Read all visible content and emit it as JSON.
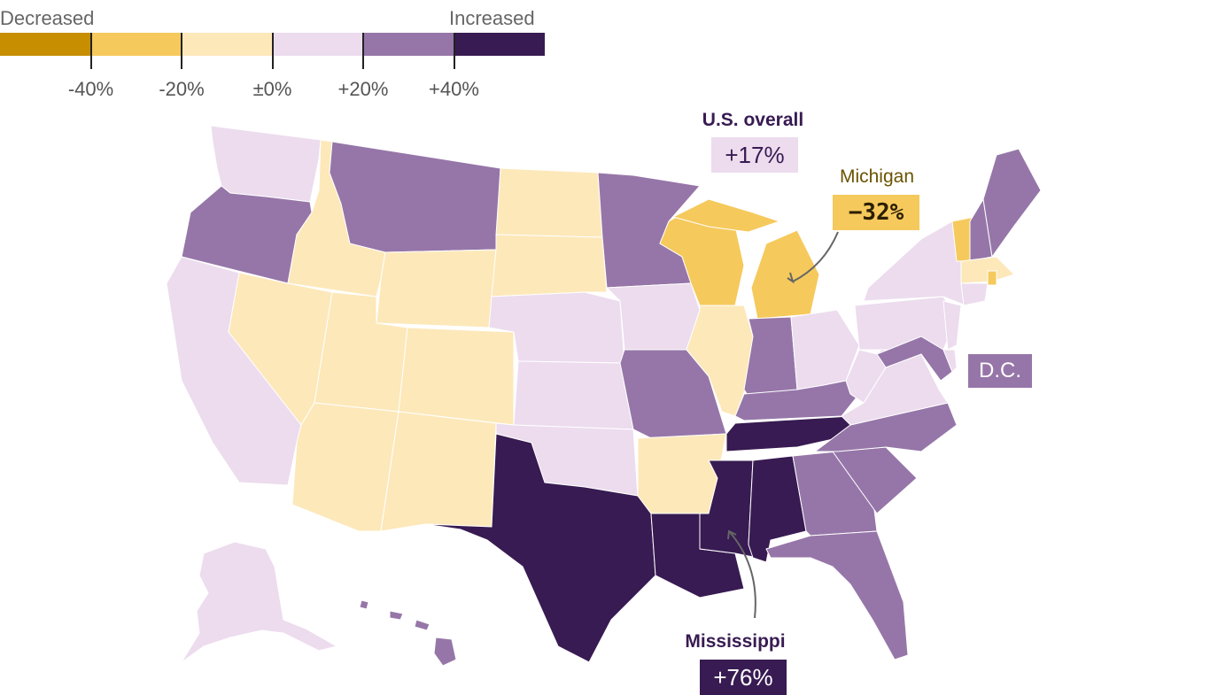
{
  "legend": {
    "left_label": "Decreased",
    "right_label": "Increased",
    "bins": [
      {
        "color": "#c68e00"
      },
      {
        "color": "#f5c95c"
      },
      {
        "color": "#fde8ba"
      },
      {
        "color": "#ecdcee"
      },
      {
        "color": "#9676a8"
      },
      {
        "color": "#381b52"
      }
    ],
    "ticks": [
      "-40%",
      "-20%",
      "±0%",
      "+20%",
      "+40%"
    ]
  },
  "states": {
    "WA": 3,
    "OR": 4,
    "CA": 3,
    "ID": 2,
    "NV": 2,
    "MT": 4,
    "WY": 2,
    "UT": 2,
    "CO": 2,
    "AZ": 2,
    "NM": 2,
    "ND": 2,
    "SD": 2,
    "NE": 3,
    "KS": 3,
    "OK": 3,
    "TX": 5,
    "MN": 4,
    "IA": 3,
    "MO": 4,
    "AR": 2,
    "LA": 5,
    "WI": 1,
    "IL": 2,
    "MI": 1,
    "IN": 4,
    "OH": 3,
    "KY": 4,
    "TN": 5,
    "MS": 5,
    "AL": 5,
    "GA": 4,
    "FL": 4,
    "SC": 4,
    "NC": 4,
    "VA": 3,
    "WV": 3,
    "PA": 3,
    "NY": 3,
    "NJ": 3,
    "MD": 4,
    "DE": 3,
    "VT": 1,
    "NH": 4,
    "ME": 4,
    "MA": 2,
    "RI": 1,
    "CT": 3,
    "AK": 3,
    "HI": 4
  },
  "annotations": {
    "us_overall": {
      "title": "U.S. overall",
      "value": "+17%",
      "box_color": "#ecdcee",
      "text_color": "#381b52"
    },
    "michigan": {
      "title": "Michigan",
      "value": "−32%",
      "box_color": "#f5c95c",
      "text_color": "#6b5300"
    },
    "dc": {
      "value": "D.C.",
      "box_color": "#9676a8"
    },
    "mississippi": {
      "title": "Mississippi",
      "value": "+76%",
      "box_color": "#381b52",
      "text_color": "#381b52"
    }
  }
}
